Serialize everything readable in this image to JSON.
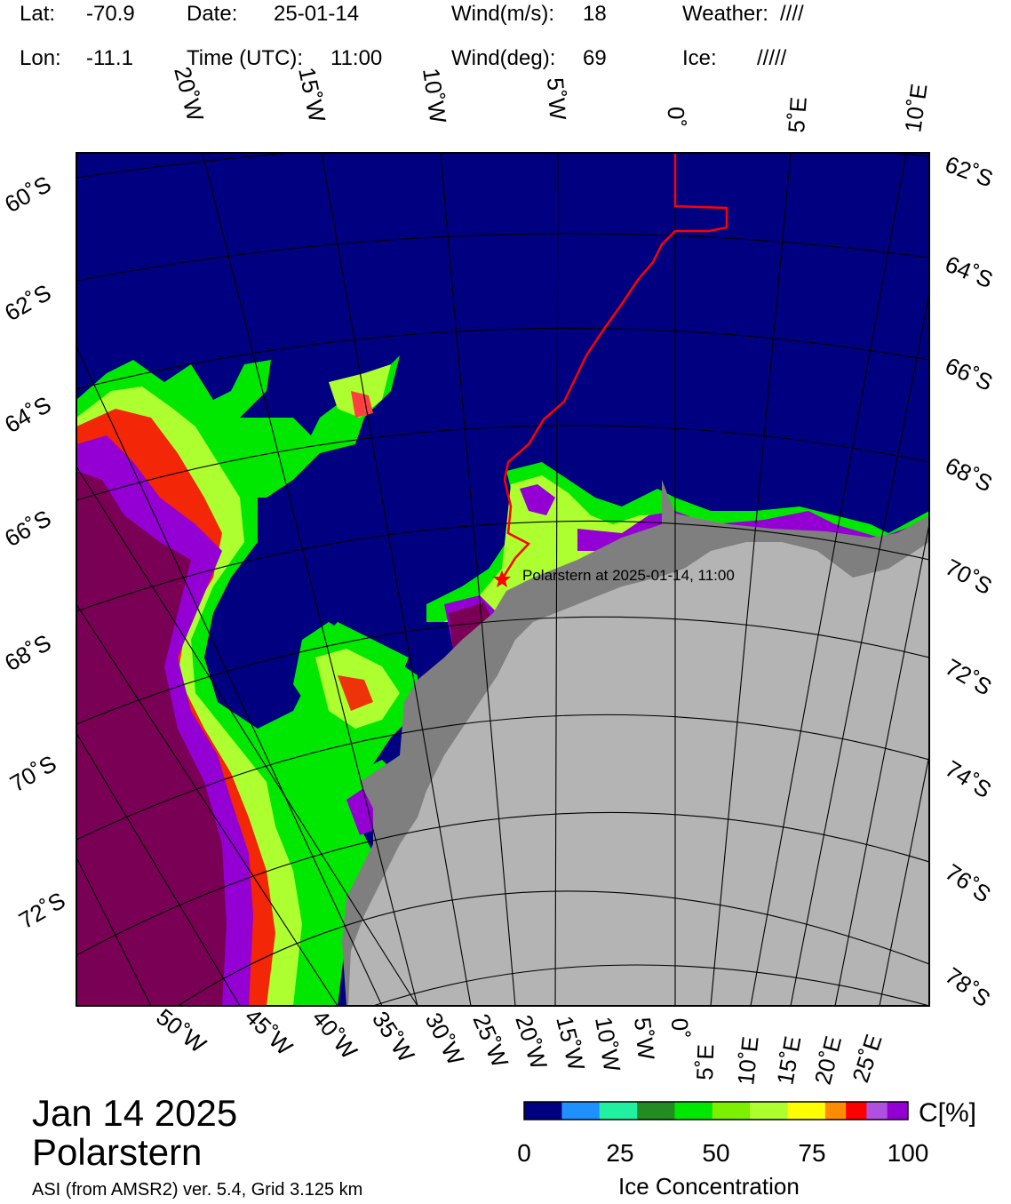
{
  "header": {
    "lat_label": "Lat:",
    "lat_value": "-70.9",
    "lon_label": "Lon:",
    "lon_value": "-11.1",
    "date_label": "Date:",
    "date_value": "25-01-14",
    "time_label": "Time (UTC):",
    "time_value": "11:00",
    "wind_speed_label": "Wind(m/s):",
    "wind_speed_value": "18",
    "wind_dir_label": "Wind(deg):",
    "wind_dir_value": "69",
    "weather_label": "Weather:",
    "weather_value": "////",
    "ice_label": "Ice:",
    "ice_value": "/////"
  },
  "map": {
    "top_lon_labels": [
      "20˚W",
      "15˚W",
      "10˚W",
      "5˚W",
      "0˚",
      "5˚E",
      "10˚E"
    ],
    "left_lat_labels": [
      "60˚S",
      "62˚S",
      "64˚S",
      "66˚S",
      "68˚S",
      "70˚S",
      "72˚S"
    ],
    "right_lat_labels": [
      "62˚S",
      "64˚S",
      "66˚S",
      "68˚S",
      "70˚S",
      "72˚S",
      "74˚S",
      "76˚S",
      "78˚S"
    ],
    "bottom_lon_labels": [
      "50˚W",
      "45˚W",
      "40˚W",
      "35˚W",
      "30˚W",
      "25˚W",
      "20˚W",
      "15˚W",
      "10˚W",
      "5˚W",
      "0˚",
      "5˚E",
      "10˚E",
      "15˚E",
      "20˚E",
      "25˚E"
    ],
    "ship_label": "Polarstern at 2025-01-14, 11:00",
    "colors": {
      "ocean": "#000080",
      "land_ice": "#b4b4b4",
      "shelf_ice": "#7f7f7f",
      "track": "#ff0000"
    }
  },
  "footer": {
    "date_line": "Jan 14 2025",
    "vessel": "Polarstern",
    "source": "ASI (from AMSR2) ver. 5.4,  Grid 3.125 km"
  },
  "colorbar": {
    "title": "Ice Concentration",
    "unit": "C[%]",
    "tick_labels": [
      "0",
      "25",
      "50",
      "75",
      "100"
    ],
    "colors": [
      "#000080",
      "#1e90ff",
      "#20f0a0",
      "#228b22",
      "#00e800",
      "#7cf000",
      "#adff2f",
      "#ffff00",
      "#ff8c00",
      "#ff0000",
      "#b050e0",
      "#9400d3"
    ]
  }
}
